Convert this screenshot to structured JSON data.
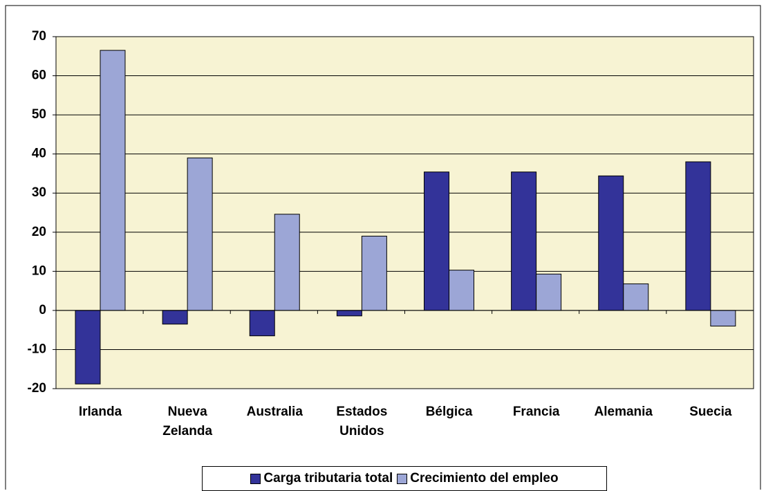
{
  "chart_data": {
    "type": "bar",
    "categories": [
      "Irlanda",
      "Nueva Zelanda",
      "Australia",
      "Estados Unidos",
      "Bélgica",
      "Francia",
      "Alemania",
      "Suecia"
    ],
    "series": [
      {
        "name": "Carga tributaria total",
        "color": "#333399",
        "values": [
          -18.8,
          -3.5,
          -6.5,
          -1.4,
          35.4,
          35.4,
          34.4,
          38
        ]
      },
      {
        "name": "Crecimiento del empleo",
        "color": "#9ca6d6",
        "values": [
          66.5,
          39,
          24.6,
          19,
          10.3,
          9.3,
          6.8,
          -4
        ]
      }
    ],
    "ylim": [
      -20,
      70
    ],
    "yticks": [
      -20,
      -10,
      0,
      10,
      20,
      30,
      40,
      50,
      60,
      70
    ],
    "grid": true
  }
}
